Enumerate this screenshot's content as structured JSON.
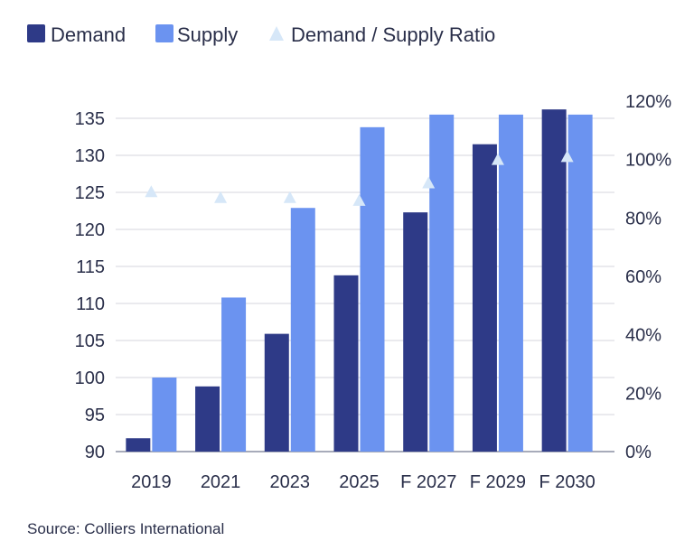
{
  "chart_data": {
    "type": "bar",
    "title": "",
    "categories": [
      "2019",
      "2021",
      "2023",
      "2025",
      "F 2027",
      "F 2029",
      "F 2030"
    ],
    "series": [
      {
        "name": "Demand",
        "kind": "bar",
        "axis": "left",
        "color": "#2e3a87",
        "values": [
          91.8,
          98.8,
          105.9,
          113.8,
          122.3,
          131.5,
          136.2
        ]
      },
      {
        "name": "Supply",
        "kind": "bar",
        "axis": "left",
        "color": "#6b93f0",
        "values": [
          100,
          110.8,
          122.9,
          133.8,
          135.5,
          135.5,
          135.5
        ]
      },
      {
        "name": "Demand / Supply Ratio",
        "kind": "marker",
        "axis": "right",
        "color": "#d6e7f8",
        "values": [
          0.89,
          0.87,
          0.87,
          0.86,
          0.92,
          1.0,
          1.01
        ]
      }
    ],
    "y_left": {
      "min": 90,
      "max": 135,
      "ticks": [
        90,
        95,
        100,
        105,
        110,
        115,
        120,
        125,
        130,
        135
      ]
    },
    "y_right": {
      "min": 0,
      "max": 1.2,
      "ticks": [
        "0%",
        "20%",
        "40%",
        "60%",
        "80%",
        "100%",
        "120%"
      ]
    },
    "grid": true,
    "legend_position": "top-left"
  },
  "source": "Source: Colliers International"
}
